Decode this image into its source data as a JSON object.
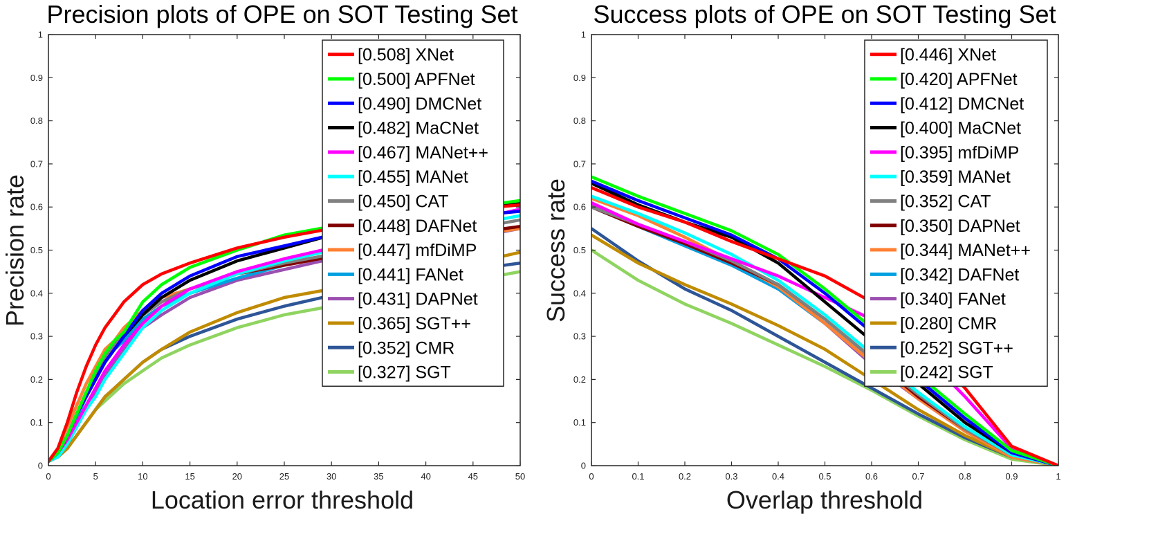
{
  "chart_data": [
    {
      "type": "line",
      "title": "Precision plots of OPE on SOT Testing Set",
      "xlabel": "Location error threshold",
      "ylabel": "Precision rate",
      "xlim": [
        0,
        50
      ],
      "ylim": [
        0,
        1
      ],
      "xticks": [
        0,
        5,
        10,
        15,
        20,
        25,
        30,
        35,
        40,
        45,
        50
      ],
      "yticks": [
        0,
        0.1,
        0.2,
        0.3,
        0.4,
        0.5,
        0.6,
        0.7,
        0.8,
        0.9,
        1
      ],
      "xtick_labels": [
        "0",
        "5",
        "10",
        "15",
        "20",
        "25",
        "30",
        "35",
        "40",
        "45",
        "50"
      ],
      "ytick_labels": [
        "0",
        "0.1",
        "0.2",
        "0.3",
        "0.4",
        "0.5",
        "0.6",
        "0.7",
        "0.8",
        "0.9",
        "1"
      ],
      "legend_position": "top-right",
      "x": [
        0,
        1,
        2,
        3,
        4,
        5,
        6,
        7,
        8,
        10,
        12,
        15,
        20,
        25,
        30,
        35,
        40,
        45,
        50
      ],
      "series": [
        {
          "label": "[0.508] XNet",
          "color": "#ff0000",
          "values": [
            0.01,
            0.04,
            0.1,
            0.17,
            0.23,
            0.28,
            0.32,
            0.35,
            0.38,
            0.42,
            0.445,
            0.47,
            0.505,
            0.53,
            0.55,
            0.57,
            0.585,
            0.595,
            0.605
          ]
        },
        {
          "label": "[0.500] APFNet",
          "color": "#00ff00",
          "values": [
            0.01,
            0.03,
            0.07,
            0.12,
            0.17,
            0.22,
            0.26,
            0.29,
            0.31,
            0.38,
            0.42,
            0.46,
            0.5,
            0.535,
            0.555,
            0.575,
            0.59,
            0.6,
            0.615
          ]
        },
        {
          "label": "[0.490] DMCNet",
          "color": "#0000ff",
          "values": [
            0.01,
            0.03,
            0.07,
            0.12,
            0.16,
            0.2,
            0.24,
            0.27,
            0.3,
            0.36,
            0.4,
            0.44,
            0.485,
            0.51,
            0.535,
            0.555,
            0.57,
            0.58,
            0.59
          ]
        },
        {
          "label": "[0.482] MaCNet",
          "color": "#000000",
          "values": [
            0.01,
            0.03,
            0.07,
            0.12,
            0.16,
            0.2,
            0.24,
            0.27,
            0.3,
            0.35,
            0.39,
            0.43,
            0.475,
            0.505,
            0.535,
            0.56,
            0.58,
            0.595,
            0.61
          ]
        },
        {
          "label": "[0.467] MANet++",
          "color": "#ff00ff",
          "values": [
            0.01,
            0.03,
            0.06,
            0.1,
            0.14,
            0.18,
            0.22,
            0.25,
            0.28,
            0.33,
            0.37,
            0.41,
            0.45,
            0.48,
            0.505,
            0.53,
            0.55,
            0.57,
            0.595
          ]
        },
        {
          "label": "[0.455] MANet",
          "color": "#00ffff",
          "values": [
            0.01,
            0.02,
            0.05,
            0.09,
            0.13,
            0.16,
            0.2,
            0.23,
            0.26,
            0.32,
            0.36,
            0.4,
            0.445,
            0.475,
            0.5,
            0.52,
            0.54,
            0.56,
            0.58
          ]
        },
        {
          "label": "[0.450] CAT",
          "color": "#808080",
          "values": [
            0.01,
            0.03,
            0.07,
            0.12,
            0.17,
            0.21,
            0.25,
            0.28,
            0.31,
            0.35,
            0.38,
            0.41,
            0.445,
            0.47,
            0.49,
            0.51,
            0.53,
            0.55,
            0.57
          ]
        },
        {
          "label": "[0.448] DAFNet",
          "color": "#800000",
          "values": [
            0.01,
            0.03,
            0.07,
            0.12,
            0.17,
            0.21,
            0.25,
            0.28,
            0.31,
            0.35,
            0.38,
            0.41,
            0.445,
            0.465,
            0.485,
            0.505,
            0.52,
            0.54,
            0.555
          ]
        },
        {
          "label": "[0.447] mfDiMP",
          "color": "#ff8033",
          "values": [
            0.01,
            0.04,
            0.09,
            0.14,
            0.19,
            0.23,
            0.27,
            0.29,
            0.32,
            0.36,
            0.39,
            0.41,
            0.445,
            0.465,
            0.485,
            0.5,
            0.52,
            0.535,
            0.55
          ]
        },
        {
          "label": "[0.441] FANet",
          "color": "#00a0e0",
          "values": [
            0.01,
            0.03,
            0.07,
            0.11,
            0.16,
            0.2,
            0.24,
            0.27,
            0.29,
            0.34,
            0.37,
            0.4,
            0.435,
            0.465,
            0.485,
            0.505,
            0.52,
            0.535,
            0.55
          ]
        },
        {
          "label": "[0.431] DAPNet",
          "color": "#9b4fb0",
          "values": [
            0.01,
            0.02,
            0.05,
            0.09,
            0.13,
            0.17,
            0.21,
            0.24,
            0.27,
            0.32,
            0.35,
            0.39,
            0.43,
            0.455,
            0.48,
            0.5,
            0.515,
            0.53,
            0.55
          ]
        },
        {
          "label": "[0.365] SGT++",
          "color": "#c08b00",
          "values": [
            0.01,
            0.02,
            0.04,
            0.07,
            0.1,
            0.13,
            0.16,
            0.18,
            0.2,
            0.24,
            0.27,
            0.31,
            0.355,
            0.39,
            0.41,
            0.435,
            0.455,
            0.47,
            0.495
          ]
        },
        {
          "label": "[0.352] CMR",
          "color": "#2e5597",
          "values": [
            0.01,
            0.02,
            0.04,
            0.07,
            0.1,
            0.13,
            0.16,
            0.18,
            0.2,
            0.24,
            0.27,
            0.3,
            0.34,
            0.37,
            0.395,
            0.42,
            0.44,
            0.455,
            0.47
          ]
        },
        {
          "label": "[0.327] SGT",
          "color": "#8fd460",
          "values": [
            0.01,
            0.02,
            0.04,
            0.07,
            0.1,
            0.13,
            0.15,
            0.17,
            0.19,
            0.22,
            0.25,
            0.28,
            0.32,
            0.35,
            0.37,
            0.395,
            0.415,
            0.43,
            0.45
          ]
        }
      ]
    },
    {
      "type": "line",
      "title": "Success plots of OPE on SOT Testing Set",
      "xlabel": "Overlap threshold",
      "ylabel": "Success rate",
      "xlim": [
        0,
        1
      ],
      "ylim": [
        0,
        1
      ],
      "xticks": [
        0,
        0.1,
        0.2,
        0.3,
        0.4,
        0.5,
        0.6,
        0.7,
        0.8,
        0.9,
        1
      ],
      "yticks": [
        0,
        0.1,
        0.2,
        0.3,
        0.4,
        0.5,
        0.6,
        0.7,
        0.8,
        0.9,
        1
      ],
      "xtick_labels": [
        "0",
        "0.1",
        "0.2",
        "0.3",
        "0.4",
        "0.5",
        "0.6",
        "0.7",
        "0.8",
        "0.9",
        "1"
      ],
      "ytick_labels": [
        "0",
        "0.1",
        "0.2",
        "0.3",
        "0.4",
        "0.5",
        "0.6",
        "0.7",
        "0.8",
        "0.9",
        "1"
      ],
      "legend_position": "top-right",
      "x": [
        0,
        0.1,
        0.2,
        0.3,
        0.4,
        0.5,
        0.6,
        0.7,
        0.8,
        0.9,
        1
      ],
      "series": [
        {
          "label": "[0.446] XNet",
          "color": "#ff0000",
          "values": [
            0.645,
            0.6,
            0.565,
            0.52,
            0.48,
            0.44,
            0.38,
            0.29,
            0.18,
            0.045,
            0
          ]
        },
        {
          "label": "[0.420] APFNet",
          "color": "#00ff00",
          "values": [
            0.67,
            0.625,
            0.585,
            0.545,
            0.49,
            0.41,
            0.32,
            0.21,
            0.12,
            0.035,
            0
          ]
        },
        {
          "label": "[0.412] DMCNet",
          "color": "#0000ff",
          "values": [
            0.66,
            0.615,
            0.575,
            0.535,
            0.48,
            0.4,
            0.31,
            0.2,
            0.11,
            0.03,
            0
          ]
        },
        {
          "label": "[0.400] MaCNet",
          "color": "#000000",
          "values": [
            0.655,
            0.605,
            0.565,
            0.53,
            0.47,
            0.38,
            0.29,
            0.19,
            0.1,
            0.03,
            0
          ]
        },
        {
          "label": "[0.395] mfDiMP",
          "color": "#ff00ff",
          "values": [
            0.61,
            0.56,
            0.52,
            0.48,
            0.44,
            0.39,
            0.34,
            0.27,
            0.16,
            0.04,
            0
          ]
        },
        {
          "label": "[0.359] MANet",
          "color": "#00ffff",
          "values": [
            0.625,
            0.585,
            0.54,
            0.49,
            0.43,
            0.35,
            0.26,
            0.17,
            0.09,
            0.025,
            0
          ]
        },
        {
          "label": "[0.352] CAT",
          "color": "#808080",
          "values": [
            0.6,
            0.56,
            0.52,
            0.475,
            0.42,
            0.34,
            0.25,
            0.165,
            0.085,
            0.025,
            0
          ]
        },
        {
          "label": "[0.350] DAPNet",
          "color": "#800000",
          "values": [
            0.6,
            0.555,
            0.515,
            0.47,
            0.42,
            0.34,
            0.25,
            0.16,
            0.085,
            0.025,
            0
          ]
        },
        {
          "label": "[0.344] MANet++",
          "color": "#ff8033",
          "values": [
            0.62,
            0.58,
            0.53,
            0.475,
            0.415,
            0.33,
            0.24,
            0.155,
            0.08,
            0.02,
            0
          ]
        },
        {
          "label": "[0.342] DAFNet",
          "color": "#00a0e0",
          "values": [
            0.6,
            0.555,
            0.51,
            0.465,
            0.41,
            0.33,
            0.24,
            0.16,
            0.085,
            0.025,
            0
          ]
        },
        {
          "label": "[0.340] FANet",
          "color": "#9b4fb0",
          "values": [
            0.605,
            0.56,
            0.51,
            0.465,
            0.41,
            0.33,
            0.235,
            0.155,
            0.08,
            0.02,
            0
          ]
        },
        {
          "label": "[0.280] CMR",
          "color": "#c08b00",
          "values": [
            0.535,
            0.47,
            0.42,
            0.375,
            0.325,
            0.27,
            0.2,
            0.13,
            0.07,
            0.02,
            0
          ]
        },
        {
          "label": "[0.252] SGT++",
          "color": "#2e5597",
          "values": [
            0.55,
            0.475,
            0.41,
            0.36,
            0.3,
            0.24,
            0.18,
            0.12,
            0.065,
            0.02,
            0
          ]
        },
        {
          "label": "[0.242] SGT",
          "color": "#8fd460",
          "values": [
            0.5,
            0.43,
            0.375,
            0.33,
            0.28,
            0.23,
            0.175,
            0.115,
            0.06,
            0.015,
            0
          ]
        }
      ]
    }
  ]
}
